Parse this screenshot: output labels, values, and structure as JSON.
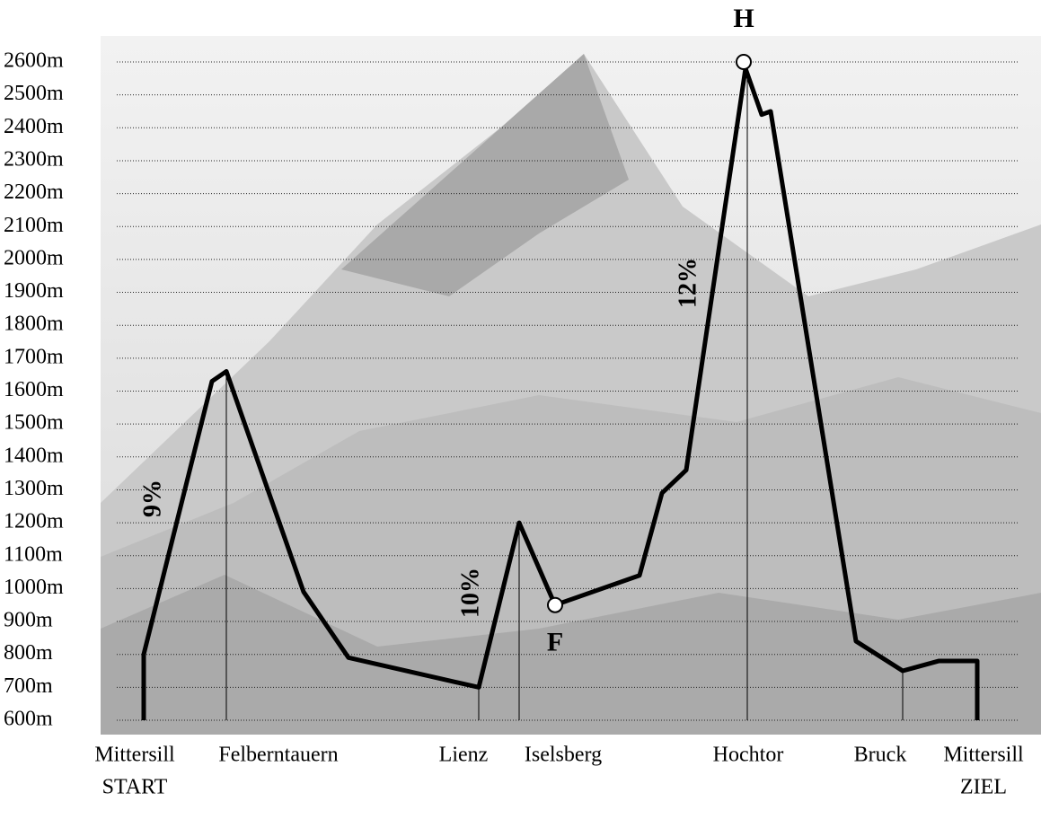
{
  "chart_data": {
    "type": "line",
    "x": [
      40,
      40,
      116,
      132,
      218,
      268,
      413,
      458,
      498,
      592,
      617,
      644,
      710,
      728,
      738,
      833,
      885,
      925,
      968,
      968
    ],
    "series": [
      {
        "color": "#000000",
        "values": [
          600,
          800,
          1630,
          1660,
          990,
          790,
          700,
          1200,
          950,
          1040,
          1290,
          1360,
          2580,
          2440,
          2450,
          840,
          750,
          780,
          780,
          600
        ]
      }
    ],
    "xlim": [
      0,
      1020
    ],
    "ylim": [
      600,
      2600
    ],
    "yticks": [
      {
        "value": 600,
        "label": "600m"
      },
      {
        "value": 700,
        "label": "700m"
      },
      {
        "value": 800,
        "label": "800m"
      },
      {
        "value": 900,
        "label": "900m"
      },
      {
        "value": 1000,
        "label": "1000m"
      },
      {
        "value": 1100,
        "label": "1100m"
      },
      {
        "value": 1200,
        "label": "1200m"
      },
      {
        "value": 1300,
        "label": "1300m"
      },
      {
        "value": 1400,
        "label": "1400m"
      },
      {
        "value": 1500,
        "label": "1500m"
      },
      {
        "value": 1600,
        "label": "1600m"
      },
      {
        "value": 1700,
        "label": "1700m"
      },
      {
        "value": 1800,
        "label": "1800m"
      },
      {
        "value": 1900,
        "label": "1900m"
      },
      {
        "value": 2000,
        "label": "2000m"
      },
      {
        "value": 2100,
        "label": "2100m"
      },
      {
        "value": 2200,
        "label": "2200m"
      },
      {
        "value": 2300,
        "label": "2300m"
      },
      {
        "value": 2400,
        "label": "2400m"
      },
      {
        "value": 2500,
        "label": "2500m"
      },
      {
        "value": 2600,
        "label": "2600m"
      }
    ],
    "grid": true,
    "places": [
      {
        "lines": [
          "Mittersill",
          "START"
        ],
        "x": 40,
        "elevation": 800
      },
      {
        "lines": [
          "Felberntauern"
        ],
        "x": 132,
        "elevation": 1660
      },
      {
        "lines": [
          "Lienz"
        ],
        "x": 413,
        "elevation": 700
      },
      {
        "lines": [
          "Iselsberg"
        ],
        "x": 458,
        "elevation": 1200
      },
      {
        "lines": [
          "Hochtor"
        ],
        "x": 712,
        "elevation": 2600
      },
      {
        "lines": [
          "Bruck"
        ],
        "x": 885,
        "elevation": 750
      },
      {
        "lines": [
          "Mittersill",
          "ZIEL"
        ],
        "x": 968,
        "elevation": 780
      }
    ],
    "markers": [
      {
        "label": "F",
        "x": 498,
        "value": 950
      },
      {
        "label": "H",
        "x": 708,
        "value": 2600
      }
    ],
    "annotations": [
      "9%",
      "10%",
      "12%"
    ]
  }
}
